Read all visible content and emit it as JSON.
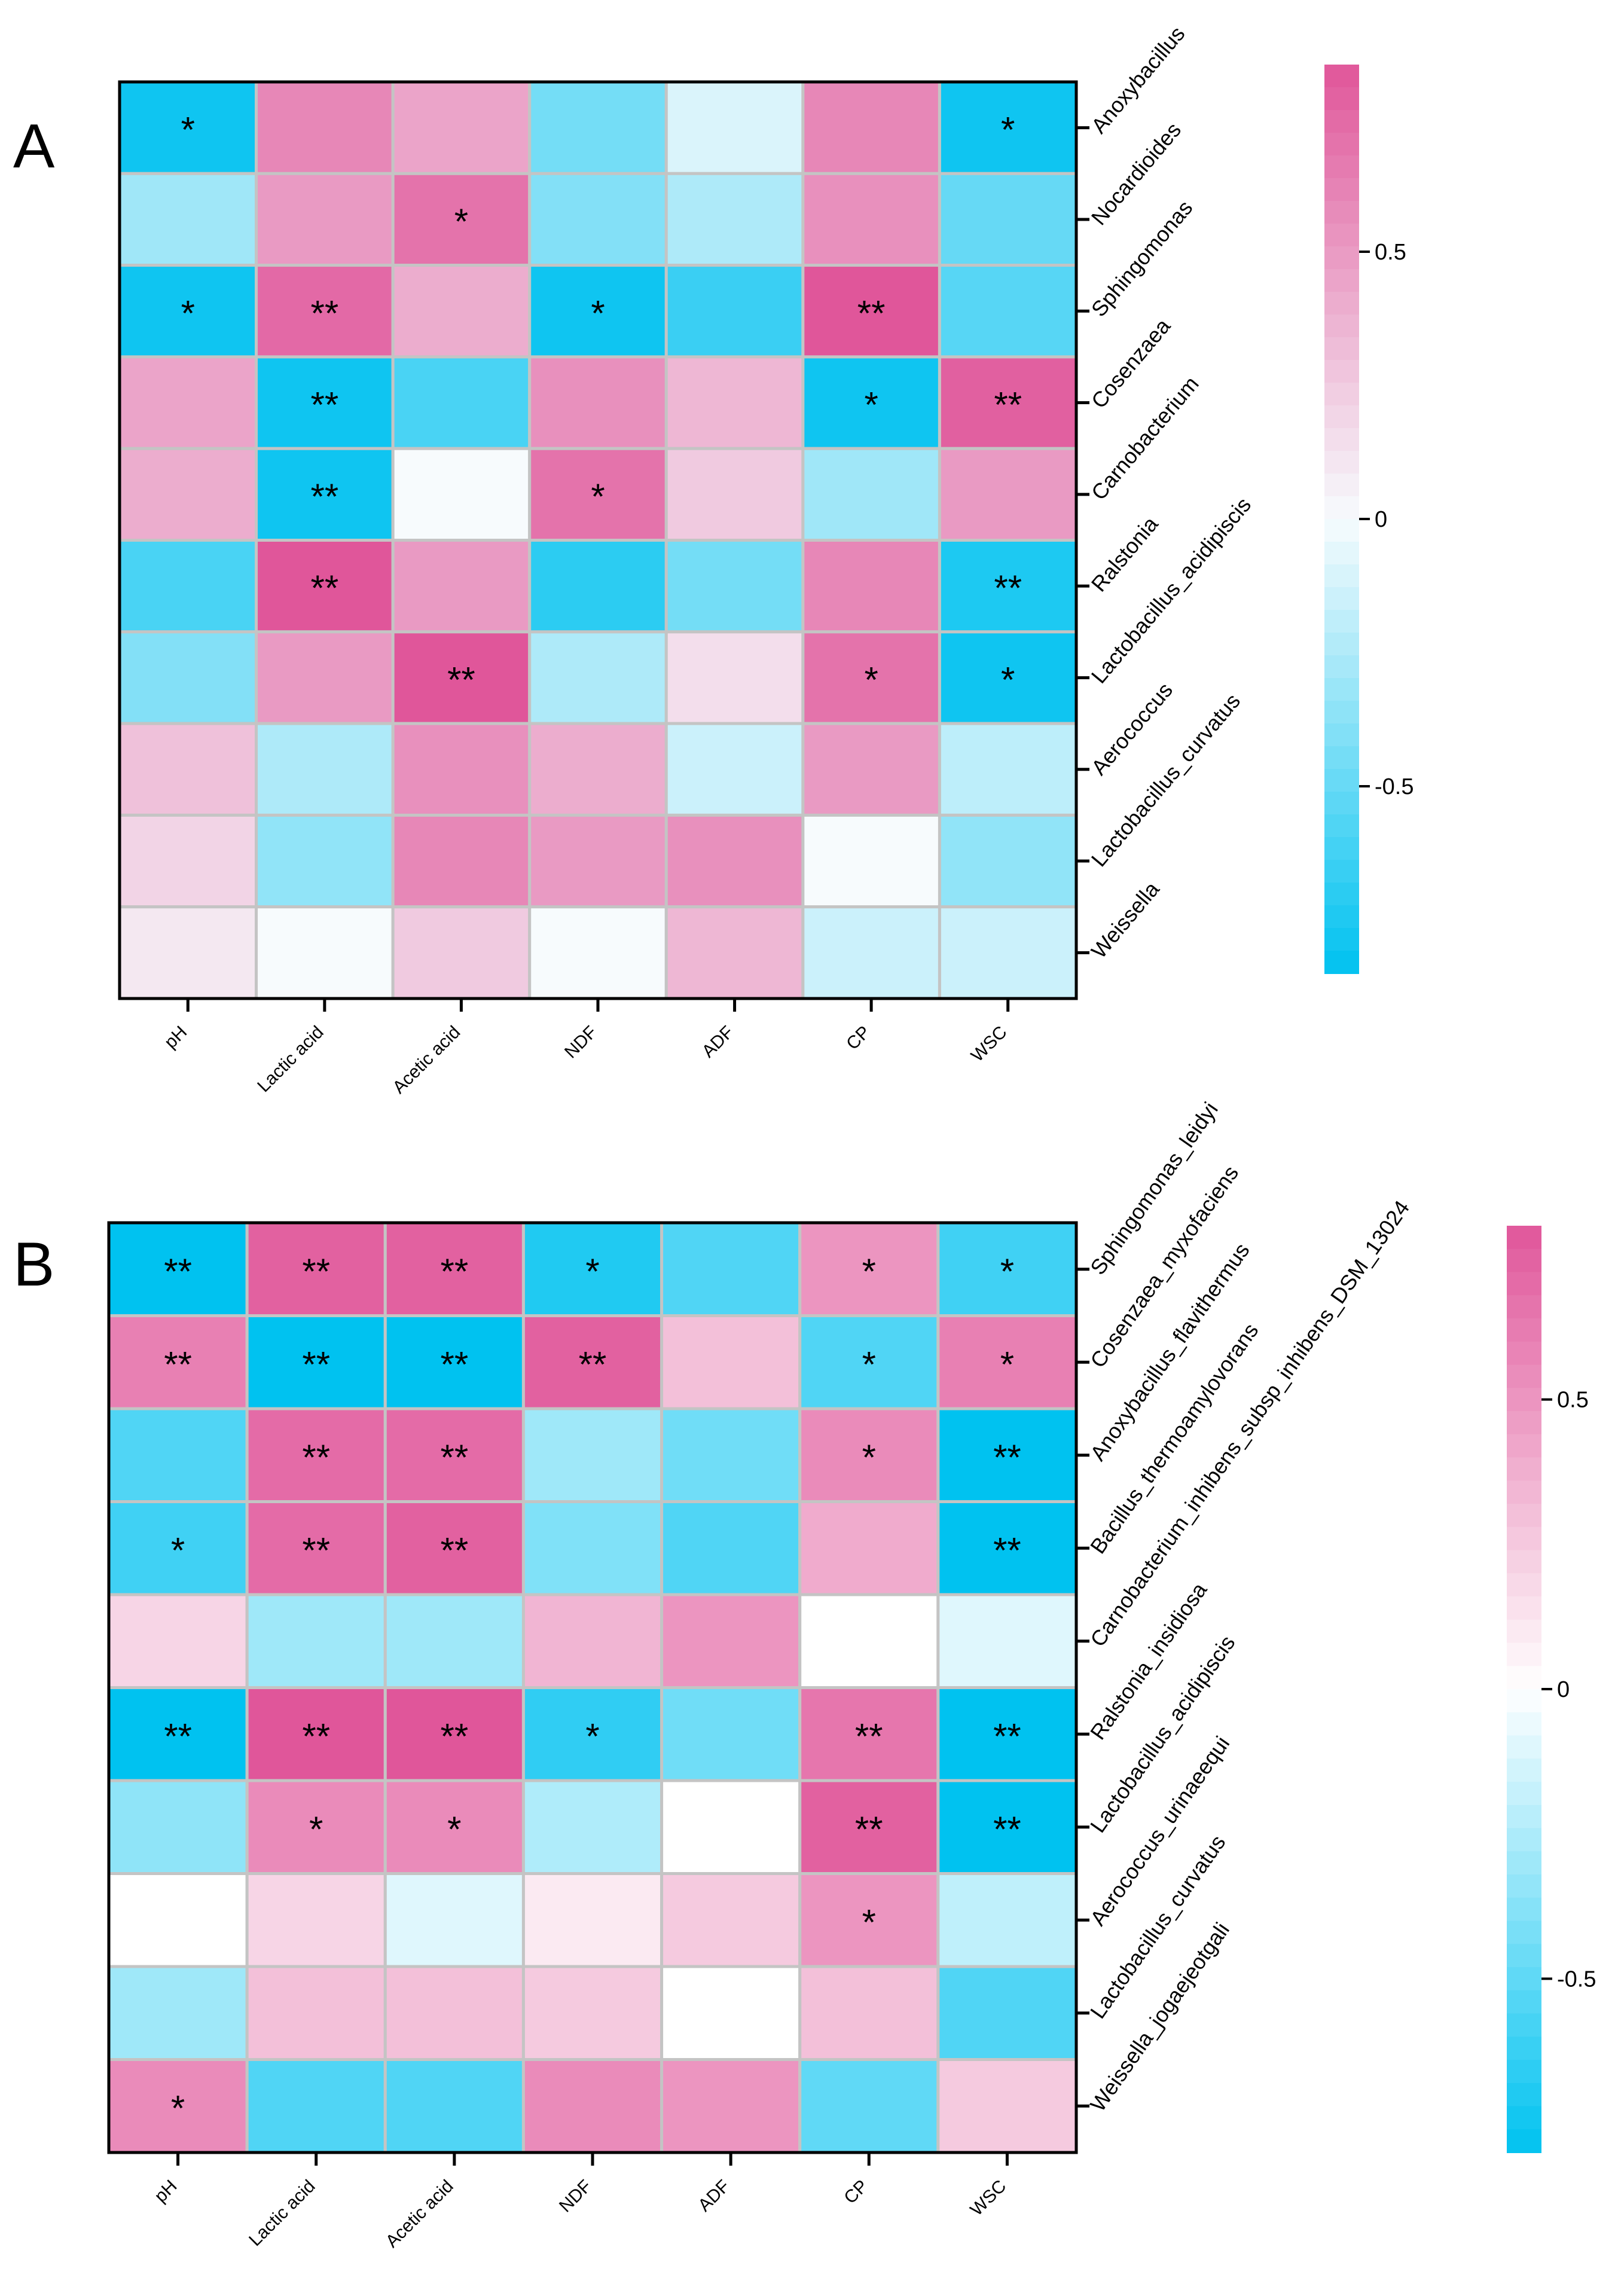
{
  "chart_data": [
    {
      "type": "heatmap",
      "panel": "A",
      "rows": [
        "Anoxybacillus",
        "Nocardioides",
        "Sphingomonas",
        "Cosenzaea",
        "Carnobacterium",
        "Ralstonia",
        "Lactobacillus_acidipiscis",
        "Aerococcus",
        "Lactobacillus_curvatus",
        "Weissella"
      ],
      "columns": [
        "pH",
        "Lactic acid",
        "Acetic acid",
        "NDF",
        "ADF",
        "CP",
        "WSC"
      ],
      "values": [
        [
          -0.8,
          0.6,
          0.45,
          -0.45,
          -0.1,
          0.6,
          -0.8
        ],
        [
          -0.3,
          0.5,
          0.7,
          -0.4,
          -0.25,
          0.55,
          -0.5
        ],
        [
          -0.8,
          0.75,
          0.4,
          -0.8,
          -0.65,
          0.85,
          -0.55
        ],
        [
          0.45,
          -0.8,
          -0.6,
          0.55,
          0.35,
          -0.8,
          0.8
        ],
        [
          0.4,
          -0.8,
          0.0,
          0.7,
          0.25,
          -0.3,
          0.5
        ],
        [
          -0.6,
          0.85,
          0.5,
          -0.7,
          -0.45,
          0.6,
          -0.75
        ],
        [
          -0.4,
          0.5,
          0.9,
          -0.25,
          0.15,
          0.7,
          -0.8
        ],
        [
          0.3,
          -0.25,
          0.55,
          0.4,
          -0.15,
          0.5,
          -0.2
        ],
        [
          0.2,
          -0.35,
          0.6,
          0.5,
          0.55,
          0.0,
          -0.35
        ],
        [
          0.1,
          0.0,
          0.25,
          0.0,
          0.35,
          -0.15,
          -0.15
        ]
      ],
      "significance": [
        [
          "*",
          "",
          "",
          "",
          "",
          "",
          "*"
        ],
        [
          "",
          "",
          "*",
          "",
          "",
          "",
          ""
        ],
        [
          "*",
          "**",
          "",
          "*",
          "",
          "**",
          ""
        ],
        [
          "",
          "**",
          "",
          "",
          "",
          "*",
          "**"
        ],
        [
          "",
          "**",
          "",
          "*",
          "",
          "",
          ""
        ],
        [
          "",
          "**",
          "",
          "",
          "",
          "",
          "**"
        ],
        [
          "",
          "",
          "**",
          "",
          "",
          "*",
          "*"
        ],
        [
          "",
          "",
          "",
          "",
          "",
          "",
          ""
        ],
        [
          "",
          "",
          "",
          "",
          "",
          "",
          ""
        ],
        [
          "",
          "",
          "",
          "",
          "",
          "",
          ""
        ]
      ],
      "colorbar": {
        "range": [
          -0.85,
          0.85
        ],
        "ticks": [
          -0.5,
          0,
          0.5
        ],
        "tick_labels": [
          "-0.5",
          "0",
          "0.5"
        ],
        "low_color": "#00c2f0",
        "mid_color": "#f7fbfd",
        "high_color": "#e0569a"
      }
    },
    {
      "type": "heatmap",
      "panel": "B",
      "rows": [
        "Sphingomonas_leidyi",
        "Cosenzaea_myxofaciens",
        "Anoxybacillus_flavithermus",
        "Bacillus_thermoamylovorans",
        "Carnobacterium_inhibens_subsp_inhibens_DSM_13024",
        "Ralstonia_insidiosa",
        "Lactobacillus_acidipiscis",
        "Aerococcus_urinaeequi",
        "Lactobacillus_curvatus",
        "Weissella_jogaejeotgali"
      ],
      "columns": [
        "pH",
        "Lactic acid",
        "Acetic acid",
        "NDF",
        "ADF",
        "CP",
        "WSC"
      ],
      "values": [
        [
          -0.8,
          0.75,
          0.75,
          -0.7,
          -0.55,
          0.5,
          -0.6
        ],
        [
          0.6,
          -0.8,
          -0.8,
          0.75,
          0.3,
          -0.55,
          0.6
        ],
        [
          -0.55,
          0.7,
          0.7,
          -0.3,
          -0.45,
          0.55,
          -0.8
        ],
        [
          -0.6,
          0.7,
          0.75,
          -0.4,
          -0.55,
          0.4,
          -0.8
        ],
        [
          0.2,
          -0.3,
          -0.3,
          0.35,
          0.5,
          0.0,
          -0.1
        ],
        [
          -0.8,
          0.85,
          0.85,
          -0.65,
          -0.45,
          0.65,
          -0.8
        ],
        [
          -0.35,
          0.55,
          0.55,
          -0.25,
          0.0,
          0.75,
          -0.8
        ],
        [
          0.0,
          0.2,
          -0.1,
          0.1,
          0.25,
          0.5,
          -0.2
        ],
        [
          -0.3,
          0.3,
          0.3,
          0.25,
          0.0,
          0.3,
          -0.55
        ],
        [
          0.55,
          -0.55,
          -0.55,
          0.55,
          0.5,
          -0.5,
          0.25
        ]
      ],
      "significance": [
        [
          "**",
          "**",
          "**",
          "*",
          "",
          "*",
          "*"
        ],
        [
          "**",
          "**",
          "**",
          "**",
          "",
          "*",
          "*"
        ],
        [
          "",
          "**",
          "**",
          "",
          "",
          "*",
          "**"
        ],
        [
          "*",
          "**",
          "**",
          "",
          "",
          "",
          "**"
        ],
        [
          "",
          "",
          "",
          "",
          "",
          "",
          ""
        ],
        [
          "**",
          "**",
          "**",
          "*",
          "",
          "**",
          "**"
        ],
        [
          "",
          "*",
          "*",
          "",
          "",
          "**",
          "**"
        ],
        [
          "",
          "",
          "",
          "",
          "",
          "*",
          ""
        ],
        [
          "",
          "",
          "",
          "",
          "",
          "",
          ""
        ],
        [
          "*",
          "",
          "",
          "",
          "",
          "",
          ""
        ]
      ],
      "colorbar": {
        "range": [
          -0.8,
          0.8
        ],
        "ticks": [
          -0.5,
          0,
          0.5
        ],
        "tick_labels": [
          "-0.5",
          "0",
          "0.5"
        ],
        "low_color": "#00c2f0",
        "mid_color": "#ffffff",
        "high_color": "#e0569a"
      }
    }
  ]
}
